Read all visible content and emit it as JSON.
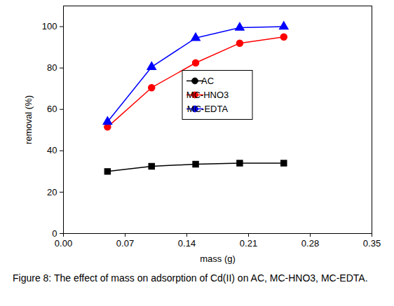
{
  "chart_data": {
    "type": "line",
    "caption": "Figure 8: The effect of mass on adsorption of Cd(II) on AC, MC-HNO3, MC-EDTA.",
    "x_label": "mass (g)",
    "y_label": "removal (%)",
    "x": [
      0.05,
      0.1,
      0.15,
      0.2,
      0.25
    ],
    "series": [
      {
        "name": "AC",
        "color": "#000000",
        "marker": "square",
        "values": [
          30,
          32.5,
          33.5,
          34,
          34
        ]
      },
      {
        "name": "MC-HNO3",
        "color": "#ff0000",
        "marker": "circle",
        "values": [
          51.5,
          70.5,
          82.5,
          92,
          95
        ]
      },
      {
        "name": "MC-EDTA",
        "color": "#0000ff",
        "marker": "triangle",
        "values": [
          54,
          80.5,
          94.5,
          99.5,
          100
        ]
      }
    ],
    "xlim": [
      0,
      0.35
    ],
    "xticks": [
      {
        "value": 0,
        "label": "0.00"
      },
      {
        "value": 0.07,
        "label": "0.07"
      },
      {
        "value": 0.14,
        "label": "0.14"
      },
      {
        "value": 0.21,
        "label": "0.21"
      },
      {
        "value": 0.28,
        "label": "0.28"
      },
      {
        "value": 0.35,
        "label": "0.35"
      }
    ],
    "ylim": [
      0,
      110
    ],
    "yticks": [
      0,
      20,
      40,
      60,
      80,
      100
    ],
    "grid": false,
    "legend": "center"
  }
}
